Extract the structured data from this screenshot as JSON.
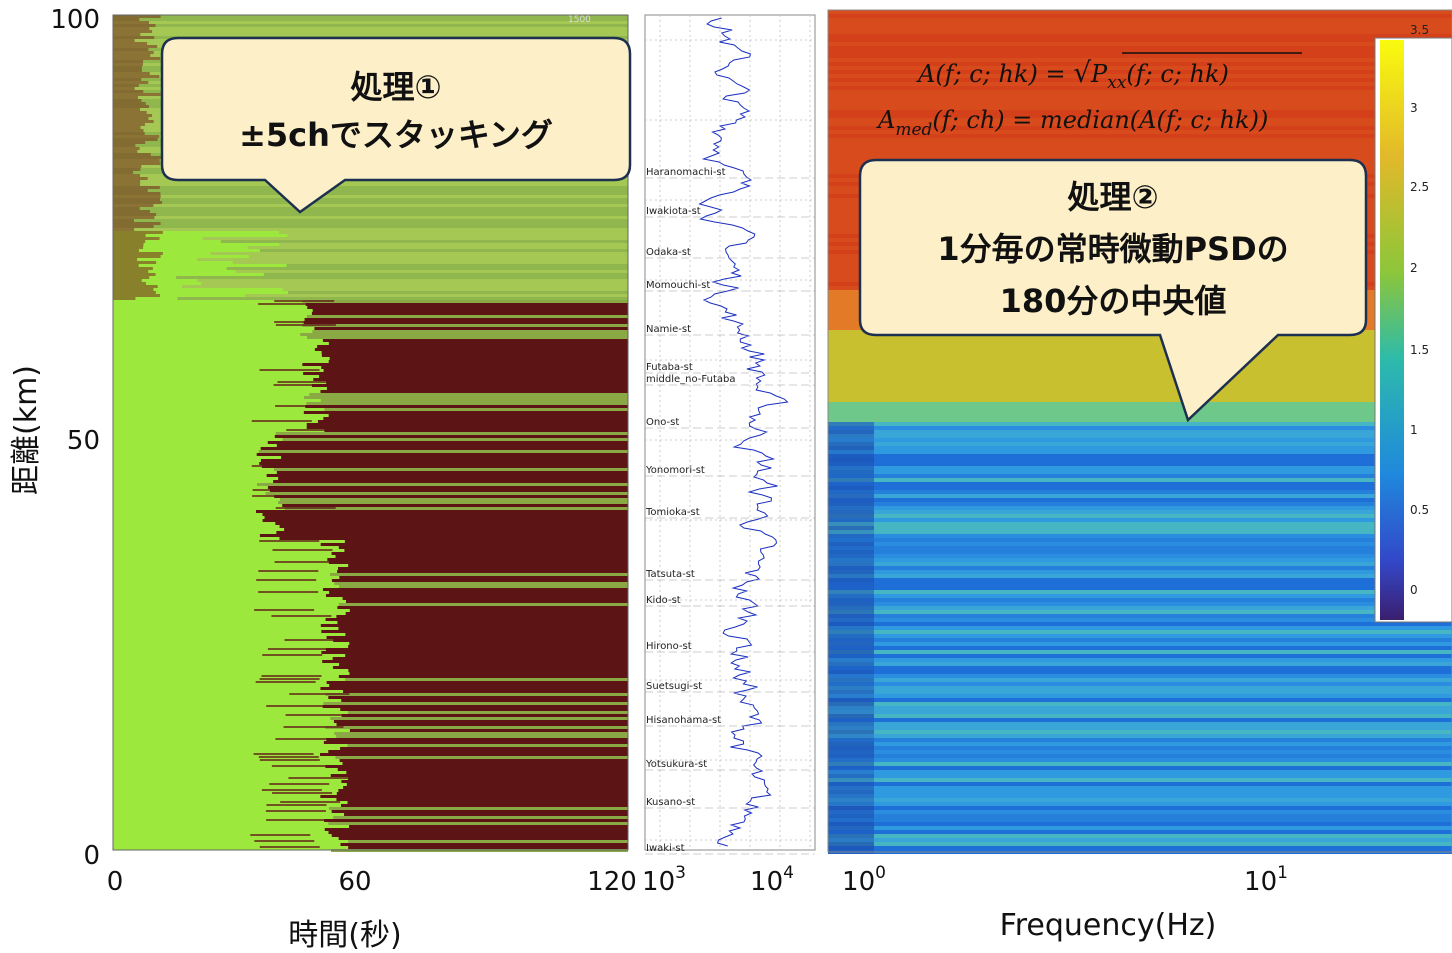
{
  "left_panel": {
    "y_axis_label": "距離(km)",
    "y_ticks": [
      "100",
      "50",
      "0"
    ],
    "x_ticks": [
      "0",
      "60",
      "120"
    ],
    "x_axis_label": "時間(秒)",
    "corner_note": "1500",
    "callout": {
      "line1": "処理①",
      "line2": "±5chでスタッキング"
    }
  },
  "middle_panel": {
    "x_ticks": [
      {
        "base": "10",
        "exp": "3"
      },
      {
        "base": "10",
        "exp": "4"
      }
    ],
    "stations": [
      "Haranomachi-st",
      "Iwakiota-st",
      "Odaka-st",
      "Momouchi-st",
      "Namie-st",
      "Futaba-st",
      "middle_no-Futaba",
      "Ono-st",
      "Yonomori-st",
      "Tomioka-st",
      "Tatsuta-st",
      "Kido-st",
      "Hirono-st",
      "Suetsugi-st",
      "Hisanohama-st",
      "Yotsukura-st",
      "Kusano-st",
      "Iwaki-st"
    ]
  },
  "right_panel": {
    "formula1": {
      "lhs": "A(f; c; hk) = ",
      "radicand": "P",
      "sub": "xx",
      "args": "(f; c; hk)"
    },
    "formula2": {
      "lhs": "A",
      "sub": "med",
      "rest": "(f; ch) =  median(A(f; c; hk))"
    },
    "callout": {
      "line1": "処理②",
      "line2": "1分毎の常時微動PSDの",
      "line3": "180分の中央値"
    },
    "colorbar_ticks": [
      "3.5",
      "3",
      "2.5",
      "2",
      "1.5",
      "1",
      "0.5",
      "0"
    ],
    "x_ticks": [
      {
        "base": "10",
        "exp": "0"
      },
      {
        "base": "10",
        "exp": "1"
      }
    ],
    "x_axis_label": "Frequency(Hz)"
  }
}
